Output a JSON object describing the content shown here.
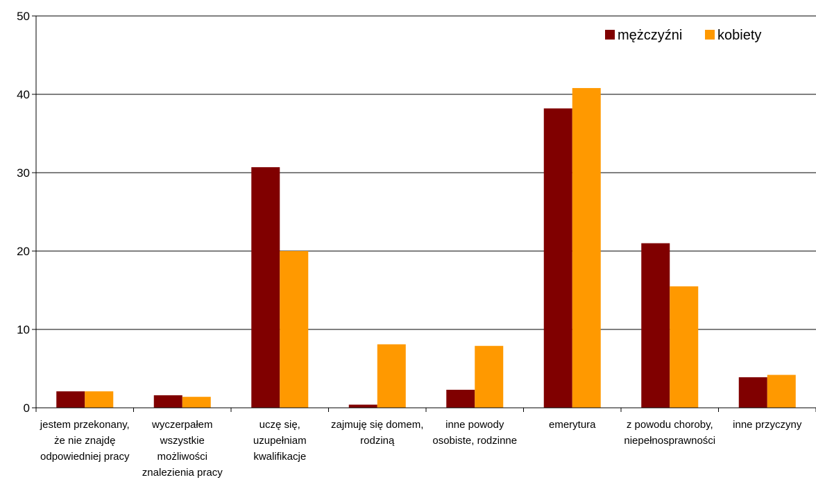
{
  "chart_data": {
    "type": "bar",
    "categories": [
      [
        "jestem przekonany,",
        "że nie znajdę",
        "odpowiedniej pracy"
      ],
      [
        "wyczerpałem",
        "wszystkie",
        "możliwości",
        "znalezienia  pracy"
      ],
      [
        "uczę się,",
        "uzupełniam",
        "kwalifikacje"
      ],
      [
        "zajmuję się domem,",
        "rodziną"
      ],
      [
        "inne powody",
        "osobiste, rodzinne"
      ],
      [
        "emerytura"
      ],
      [
        "z powodu choroby,",
        "niepełnosprawności"
      ],
      [
        "inne przyczyny"
      ]
    ],
    "series": [
      {
        "name": "mężczyźni",
        "color": "#800000",
        "values": [
          2.1,
          1.6,
          30.7,
          0.4,
          2.3,
          38.2,
          21.0,
          3.9
        ]
      },
      {
        "name": "kobiety",
        "color": "#FF9900",
        "values": [
          2.1,
          1.4,
          20.0,
          8.1,
          7.9,
          40.8,
          15.5,
          4.2
        ]
      }
    ],
    "ylim": [
      0,
      50
    ],
    "yticks": [
      "0",
      "10",
      "20",
      "30",
      "40",
      "50"
    ],
    "grid": true,
    "legend_position": "top-right"
  }
}
